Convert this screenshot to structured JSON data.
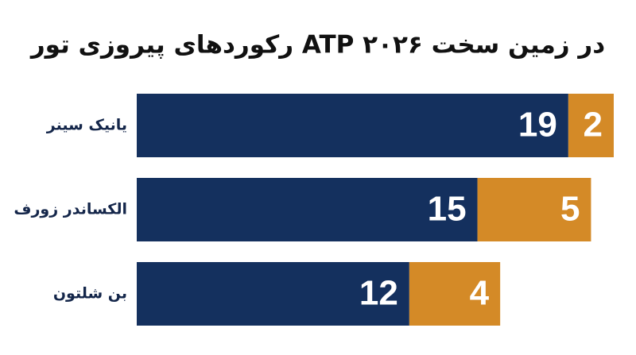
{
  "chart_data": {
    "type": "stacked-bar",
    "orientation": "horizontal",
    "title": "رکوردهای پیروزی تور ATP در زمین سخت ۲۰۲۶",
    "categories": [
      "یانیک سینر",
      "الکساندر زورف",
      "بن شلتون"
    ],
    "series": [
      {
        "color": "#14305e",
        "values": [
          19,
          15,
          12
        ]
      },
      {
        "color": "#d48a27",
        "values": [
          2,
          5,
          4
        ]
      }
    ]
  }
}
